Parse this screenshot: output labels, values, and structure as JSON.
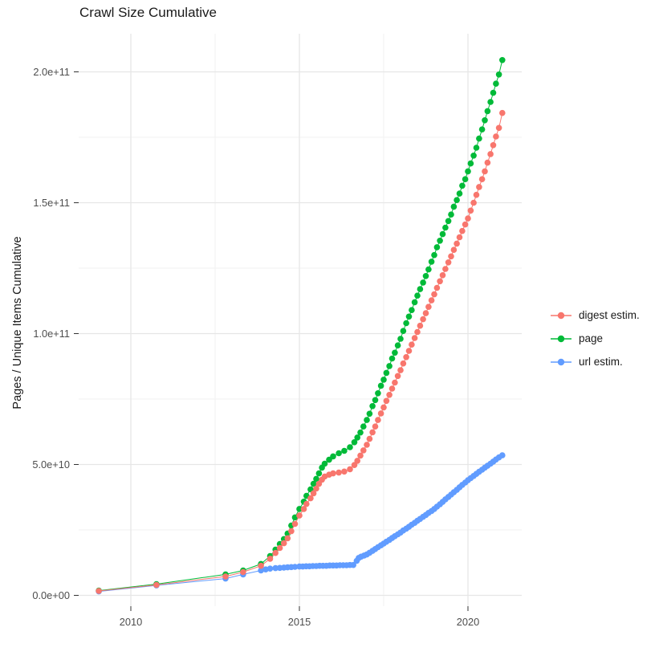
{
  "title": "Crawl Size Cumulative",
  "y_axis": {
    "label": "Pages / Unique Items Cumulative",
    "tick_labels": [
      "0.0e+00",
      "5.0e+10",
      "1.0e+11",
      "1.5e+11",
      "2.0e+11"
    ],
    "tick_values_e9": [
      0,
      50,
      100,
      150,
      200
    ],
    "minor_values_e9": [
      25,
      75,
      125,
      175
    ]
  },
  "x_axis": {
    "tick_labels": [
      "2010",
      "2015",
      "2020"
    ],
    "tick_values": [
      2010,
      2015,
      2020
    ],
    "minor_values": [
      2012.5,
      2017.5
    ]
  },
  "legend": {
    "items": [
      {
        "label": "digest estim.",
        "color": "#F8766D"
      },
      {
        "label": "page",
        "color": "#00BA38"
      },
      {
        "label": "url estim.",
        "color": "#619CFF"
      }
    ]
  },
  "chart_data": {
    "type": "line",
    "title": "Crawl Size Cumulative",
    "xlabel": "",
    "ylabel": "Pages / Unique Items Cumulative",
    "x_unit": "year",
    "y_unit": "pages / unique items, billions (1e9)",
    "xlim": [
      2008.7,
      2021.6
    ],
    "ylim_e9": [
      0,
      215
    ],
    "grid": true,
    "legend_position": "right",
    "marker": "point-with-line",
    "series": [
      {
        "name": "digest estim.",
        "color": "#F8766D",
        "points": [
          [
            2009.05,
            1.7
          ],
          [
            2010.76,
            4.0
          ],
          [
            2012.81,
            7.2
          ],
          [
            2013.33,
            8.9
          ],
          [
            2013.86,
            11.3
          ],
          [
            2014.13,
            14.0
          ],
          [
            2014.29,
            16.2
          ],
          [
            2014.42,
            18.1
          ],
          [
            2014.54,
            19.9
          ],
          [
            2014.65,
            21.8
          ],
          [
            2014.76,
            24.5
          ],
          [
            2014.87,
            27.3
          ],
          [
            2015.0,
            30.5
          ],
          [
            2015.13,
            33.0
          ],
          [
            2015.21,
            34.9
          ],
          [
            2015.33,
            37.1
          ],
          [
            2015.42,
            39.0
          ],
          [
            2015.5,
            40.8
          ],
          [
            2015.58,
            42.6
          ],
          [
            2015.67,
            44.2
          ],
          [
            2015.75,
            45.4
          ],
          [
            2015.88,
            46.1
          ],
          [
            2016.0,
            46.6
          ],
          [
            2016.17,
            46.9
          ],
          [
            2016.33,
            47.3
          ],
          [
            2016.5,
            48.2
          ],
          [
            2016.63,
            49.8
          ],
          [
            2016.72,
            51.4
          ],
          [
            2016.81,
            53.4
          ],
          [
            2016.9,
            55.4
          ],
          [
            2017.0,
            57.5
          ],
          [
            2017.08,
            59.8
          ],
          [
            2017.17,
            62.3
          ],
          [
            2017.25,
            64.5
          ],
          [
            2017.33,
            67.0
          ],
          [
            2017.42,
            69.5
          ],
          [
            2017.5,
            71.8
          ],
          [
            2017.58,
            74.3
          ],
          [
            2017.67,
            76.6
          ],
          [
            2017.75,
            79.0
          ],
          [
            2017.83,
            81.3
          ],
          [
            2017.92,
            83.8
          ],
          [
            2018.0,
            86.0
          ],
          [
            2018.08,
            88.6
          ],
          [
            2018.17,
            91.0
          ],
          [
            2018.25,
            93.4
          ],
          [
            2018.33,
            95.8
          ],
          [
            2018.42,
            98.3
          ],
          [
            2018.5,
            100.6
          ],
          [
            2018.58,
            103.0
          ],
          [
            2018.67,
            105.5
          ],
          [
            2018.75,
            107.8
          ],
          [
            2018.83,
            110.2
          ],
          [
            2018.92,
            112.7
          ],
          [
            2019.0,
            115.0
          ],
          [
            2019.08,
            117.5
          ],
          [
            2019.17,
            120.0
          ],
          [
            2019.25,
            122.3
          ],
          [
            2019.33,
            124.7
          ],
          [
            2019.42,
            127.2
          ],
          [
            2019.5,
            129.5
          ],
          [
            2019.58,
            132.0
          ],
          [
            2019.67,
            134.4
          ],
          [
            2019.75,
            136.8
          ],
          [
            2019.83,
            139.2
          ],
          [
            2019.92,
            141.7
          ],
          [
            2020.0,
            144.0
          ],
          [
            2020.08,
            147.0
          ],
          [
            2020.17,
            150.0
          ],
          [
            2020.25,
            153.0
          ],
          [
            2020.33,
            156.0
          ],
          [
            2020.42,
            159.0
          ],
          [
            2020.5,
            162.0
          ],
          [
            2020.58,
            165.3
          ],
          [
            2020.67,
            168.6
          ],
          [
            2020.75,
            172.0
          ],
          [
            2020.83,
            175.3
          ],
          [
            2020.92,
            178.6
          ],
          [
            2021.02,
            184.3
          ]
        ]
      },
      {
        "name": "page",
        "color": "#00BA38",
        "points": [
          [
            2009.05,
            1.8
          ],
          [
            2010.76,
            4.3
          ],
          [
            2012.81,
            8.0
          ],
          [
            2013.33,
            9.5
          ],
          [
            2013.86,
            12.0
          ],
          [
            2014.13,
            15.0
          ],
          [
            2014.29,
            17.5
          ],
          [
            2014.42,
            19.6
          ],
          [
            2014.54,
            21.5
          ],
          [
            2014.65,
            23.6
          ],
          [
            2014.76,
            26.7
          ],
          [
            2014.87,
            29.8
          ],
          [
            2015.0,
            33.0
          ],
          [
            2015.13,
            35.8
          ],
          [
            2015.21,
            38.0
          ],
          [
            2015.33,
            40.5
          ],
          [
            2015.42,
            42.6
          ],
          [
            2015.5,
            44.5
          ],
          [
            2015.58,
            46.6
          ],
          [
            2015.67,
            48.8
          ],
          [
            2015.75,
            50.3
          ],
          [
            2015.88,
            51.8
          ],
          [
            2016.0,
            53.1
          ],
          [
            2016.17,
            54.3
          ],
          [
            2016.33,
            55.2
          ],
          [
            2016.5,
            56.6
          ],
          [
            2016.63,
            58.5
          ],
          [
            2016.72,
            60.3
          ],
          [
            2016.81,
            62.2
          ],
          [
            2016.9,
            64.5
          ],
          [
            2017.0,
            67.0
          ],
          [
            2017.08,
            69.4
          ],
          [
            2017.17,
            72.3
          ],
          [
            2017.25,
            74.6
          ],
          [
            2017.33,
            77.2
          ],
          [
            2017.42,
            80.1
          ],
          [
            2017.5,
            82.4
          ],
          [
            2017.58,
            85.0
          ],
          [
            2017.67,
            87.6
          ],
          [
            2017.75,
            90.5
          ],
          [
            2017.83,
            92.7
          ],
          [
            2017.92,
            95.5
          ],
          [
            2018.0,
            98.0
          ],
          [
            2018.08,
            101.0
          ],
          [
            2018.17,
            104.0
          ],
          [
            2018.25,
            106.5
          ],
          [
            2018.33,
            109.0
          ],
          [
            2018.42,
            112.0
          ],
          [
            2018.5,
            114.5
          ],
          [
            2018.58,
            117.0
          ],
          [
            2018.67,
            119.5
          ],
          [
            2018.75,
            122.0
          ],
          [
            2018.83,
            124.5
          ],
          [
            2018.92,
            127.5
          ],
          [
            2019.0,
            130.0
          ],
          [
            2019.08,
            133.0
          ],
          [
            2019.17,
            135.5
          ],
          [
            2019.25,
            138.0
          ],
          [
            2019.33,
            140.5
          ],
          [
            2019.42,
            143.0
          ],
          [
            2019.5,
            145.5
          ],
          [
            2019.58,
            148.5
          ],
          [
            2019.67,
            151.0
          ],
          [
            2019.75,
            153.5
          ],
          [
            2019.83,
            156.5
          ],
          [
            2019.92,
            159.0
          ],
          [
            2020.0,
            162.0
          ],
          [
            2020.08,
            165.0
          ],
          [
            2020.17,
            168.0
          ],
          [
            2020.25,
            171.0
          ],
          [
            2020.33,
            174.5
          ],
          [
            2020.42,
            178.0
          ],
          [
            2020.5,
            181.5
          ],
          [
            2020.58,
            185.0
          ],
          [
            2020.67,
            188.5
          ],
          [
            2020.75,
            192.0
          ],
          [
            2020.83,
            195.5
          ],
          [
            2020.92,
            199.0
          ],
          [
            2021.02,
            204.5
          ]
        ]
      },
      {
        "name": "url estim.",
        "color": "#619CFF",
        "points": [
          [
            2009.05,
            1.5
          ],
          [
            2010.76,
            3.8
          ],
          [
            2012.81,
            6.4
          ],
          [
            2013.33,
            8.0
          ],
          [
            2013.86,
            9.5
          ],
          [
            2014.0,
            9.9
          ],
          [
            2014.13,
            10.2
          ],
          [
            2014.29,
            10.4
          ],
          [
            2014.42,
            10.5
          ],
          [
            2014.54,
            10.6
          ],
          [
            2014.65,
            10.7
          ],
          [
            2014.76,
            10.8
          ],
          [
            2014.87,
            10.9
          ],
          [
            2015.0,
            11.0
          ],
          [
            2015.1,
            11.0
          ],
          [
            2015.2,
            11.1
          ],
          [
            2015.3,
            11.1
          ],
          [
            2015.4,
            11.2
          ],
          [
            2015.5,
            11.2
          ],
          [
            2015.6,
            11.3
          ],
          [
            2015.7,
            11.3
          ],
          [
            2015.8,
            11.3
          ],
          [
            2015.9,
            11.4
          ],
          [
            2016.0,
            11.4
          ],
          [
            2016.1,
            11.4
          ],
          [
            2016.2,
            11.5
          ],
          [
            2016.3,
            11.5
          ],
          [
            2016.4,
            11.5
          ],
          [
            2016.5,
            11.6
          ],
          [
            2016.6,
            11.6
          ],
          [
            2016.7,
            13.2
          ],
          [
            2016.76,
            14.3
          ],
          [
            2016.83,
            14.8
          ],
          [
            2016.92,
            15.2
          ],
          [
            2017.0,
            15.6
          ],
          [
            2017.08,
            16.3
          ],
          [
            2017.17,
            17.0
          ],
          [
            2017.25,
            17.7
          ],
          [
            2017.33,
            18.4
          ],
          [
            2017.42,
            19.1
          ],
          [
            2017.5,
            19.8
          ],
          [
            2017.58,
            20.5
          ],
          [
            2017.67,
            21.2
          ],
          [
            2017.75,
            21.9
          ],
          [
            2017.83,
            22.6
          ],
          [
            2017.92,
            23.3
          ],
          [
            2018.0,
            24.0
          ],
          [
            2018.08,
            24.8
          ],
          [
            2018.17,
            25.5
          ],
          [
            2018.25,
            26.2
          ],
          [
            2018.33,
            27.0
          ],
          [
            2018.42,
            27.7
          ],
          [
            2018.5,
            28.5
          ],
          [
            2018.58,
            29.2
          ],
          [
            2018.67,
            30.0
          ],
          [
            2018.75,
            30.7
          ],
          [
            2018.83,
            31.5
          ],
          [
            2018.92,
            32.2
          ],
          [
            2019.0,
            33.0
          ],
          [
            2019.08,
            33.9
          ],
          [
            2019.17,
            34.8
          ],
          [
            2019.25,
            35.7
          ],
          [
            2019.33,
            36.7
          ],
          [
            2019.42,
            37.6
          ],
          [
            2019.5,
            38.5
          ],
          [
            2019.58,
            39.4
          ],
          [
            2019.67,
            40.3
          ],
          [
            2019.75,
            41.3
          ],
          [
            2019.83,
            42.2
          ],
          [
            2019.92,
            43.1
          ],
          [
            2020.0,
            44.0
          ],
          [
            2020.08,
            44.8
          ],
          [
            2020.17,
            45.6
          ],
          [
            2020.25,
            46.4
          ],
          [
            2020.33,
            47.2
          ],
          [
            2020.42,
            48.0
          ],
          [
            2020.5,
            48.8
          ],
          [
            2020.58,
            49.5
          ],
          [
            2020.67,
            50.3
          ],
          [
            2020.75,
            51.1
          ],
          [
            2020.83,
            51.9
          ],
          [
            2020.92,
            52.7
          ],
          [
            2021.02,
            53.5
          ]
        ]
      }
    ]
  }
}
